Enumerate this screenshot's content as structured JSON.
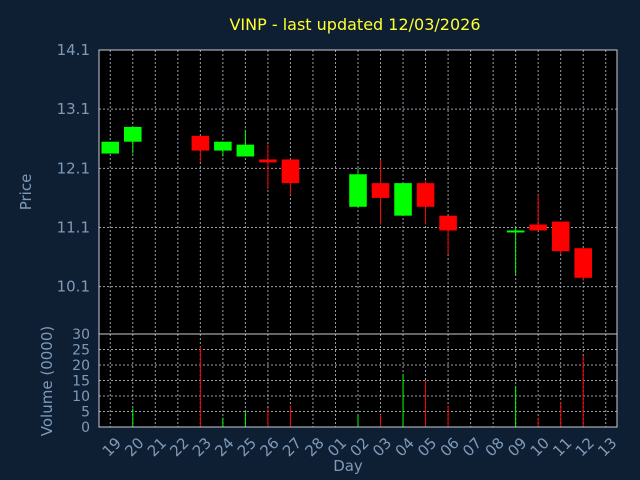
{
  "chart_data": {
    "type": "candlestick",
    "title": "VINP - last updated 12/03/2026",
    "xlabel": "Day",
    "price_axis": {
      "label": "Price",
      "ticks": [
        "10.1",
        "11.1",
        "12.1",
        "13.1",
        "14.1"
      ],
      "range": [
        9.3,
        14.1
      ],
      "grid": true
    },
    "volume_axis": {
      "label": "Volume (0000)",
      "ticks": [
        "0",
        "5",
        "10",
        "15",
        "20",
        "25",
        "30"
      ],
      "range": [
        0,
        30
      ],
      "grid": true
    },
    "x_tick_labels": [
      "19",
      "20",
      "21",
      "22",
      "23",
      "24",
      "25",
      "26",
      "27",
      "28",
      "01",
      "02",
      "03",
      "04",
      "05",
      "06",
      "07",
      "08",
      "09",
      "10",
      "11",
      "12",
      "13"
    ],
    "candles": [
      {
        "day": "19",
        "open": 12.35,
        "high": 12.55,
        "low": 12.35,
        "close": 12.55,
        "volume": 0
      },
      {
        "day": "20",
        "open": 12.55,
        "high": 12.8,
        "low": 12.35,
        "close": 12.8,
        "volume": 6
      },
      {
        "day": "23",
        "open": 12.65,
        "high": 12.65,
        "low": 12.2,
        "close": 12.4,
        "volume": 26
      },
      {
        "day": "24",
        "open": 12.4,
        "high": 12.55,
        "low": 12.3,
        "close": 12.55,
        "volume": 3
      },
      {
        "day": "25",
        "open": 12.3,
        "high": 12.75,
        "low": 12.3,
        "close": 12.5,
        "volume": 5
      },
      {
        "day": "26",
        "open": 12.25,
        "high": 12.5,
        "low": 11.75,
        "close": 12.2,
        "volume": 6
      },
      {
        "day": "27",
        "open": 12.25,
        "high": 12.25,
        "low": 11.65,
        "close": 11.85,
        "volume": 7
      },
      {
        "day": "02",
        "open": 11.45,
        "high": 12.1,
        "low": 11.45,
        "close": 12.0,
        "volume": 4
      },
      {
        "day": "03",
        "open": 11.85,
        "high": 12.25,
        "low": 11.15,
        "close": 11.6,
        "volume": 4
      },
      {
        "day": "04",
        "open": 11.3,
        "high": 11.85,
        "low": 11.3,
        "close": 11.85,
        "volume": 17
      },
      {
        "day": "05",
        "open": 11.85,
        "high": 11.9,
        "low": 11.15,
        "close": 11.45,
        "volume": 15
      },
      {
        "day": "06",
        "open": 11.3,
        "high": 11.3,
        "low": 10.65,
        "close": 11.05,
        "volume": 7
      },
      {
        "day": "09",
        "open": 11.05,
        "high": 11.1,
        "low": 10.3,
        "close": 11.05,
        "volume": 13
      },
      {
        "day": "10",
        "open": 11.15,
        "high": 11.65,
        "low": 11.05,
        "close": 11.05,
        "volume": 3
      },
      {
        "day": "11",
        "open": 11.2,
        "high": 11.2,
        "low": 10.65,
        "close": 10.7,
        "volume": 8
      },
      {
        "day": "12",
        "open": 10.75,
        "high": 10.75,
        "low": 10.2,
        "close": 10.25,
        "volume": 23
      }
    ],
    "colors": {
      "up": "#00ff00",
      "down": "#ff0000",
      "background": "#0f1f33",
      "plot_background": "#000000",
      "title": "#ffff33",
      "text": "#7f9ab8"
    }
  }
}
